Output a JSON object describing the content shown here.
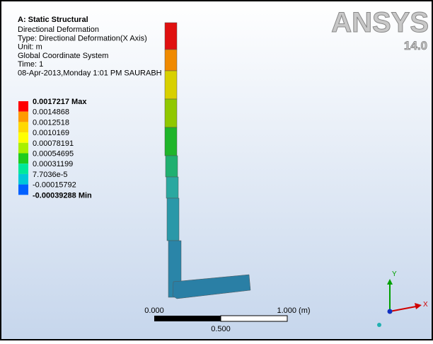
{
  "header": {
    "title": "A: Static Structural",
    "lines": [
      "Directional Deformation",
      "Type: Directional Deformation(X Axis)",
      "Unit: m",
      "Global Coordinate System",
      "Time: 1",
      "08-Apr-2013,Monday 1:01 PM SAURABH"
    ]
  },
  "logo": {
    "brand": "ANSYS",
    "version": "14.0"
  },
  "legend": {
    "labels": [
      "0.0017217 Max",
      "0.0014868",
      "0.0012518",
      "0.0010169",
      "0.00078191",
      "0.00054695",
      "0.00031199",
      "7.7036e-5",
      "-0.00015792",
      "-0.00039288 Min"
    ],
    "colors": [
      "#ff0000",
      "#ff9a00",
      "#ffd800",
      "#ffff00",
      "#a8f000",
      "#1ecc1e",
      "#00e89a",
      "#00c8d8",
      "#0060ff"
    ]
  },
  "scale": {
    "left": "0.000",
    "right": "1.000 (m)",
    "middle": "0.500"
  },
  "triad": {
    "y": "Y",
    "x": "X"
  }
}
